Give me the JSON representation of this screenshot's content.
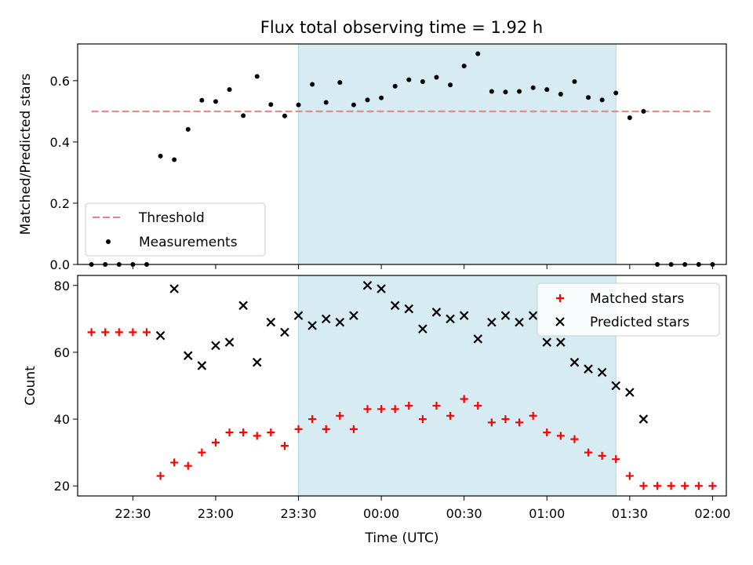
{
  "figure": {
    "title": "Flux total observing time = 1.92 h"
  },
  "chart_data": [
    {
      "type": "scatter",
      "panel": "top",
      "ylabel": "Matched/Predicted stars",
      "ylim": [
        0,
        0.72
      ],
      "yticks": [
        0.0,
        0.2,
        0.4,
        0.6
      ],
      "ytick_labels": [
        "0.0",
        "0.2",
        "0.4",
        "0.6"
      ],
      "x_range": [
        "22:10",
        "02:05"
      ],
      "shaded_span": [
        "23:30",
        "01:25"
      ],
      "shade_color": "#add8e6",
      "legend": "lower-left",
      "series": [
        {
          "name": "Threshold",
          "kind": "dashed-line",
          "color": "#f08080",
          "x": [
            "22:15",
            "02:00"
          ],
          "y": [
            0.5,
            0.5
          ]
        },
        {
          "name": "Measurements",
          "kind": "dot",
          "color": "#000000",
          "x": [
            "22:15",
            "22:20",
            "22:25",
            "22:30",
            "22:35",
            "22:40",
            "22:45",
            "22:50",
            "22:55",
            "23:00",
            "23:05",
            "23:10",
            "23:15",
            "23:20",
            "23:25",
            "23:30",
            "23:35",
            "23:40",
            "23:45",
            "23:50",
            "23:55",
            "00:00",
            "00:05",
            "00:10",
            "00:15",
            "00:20",
            "00:25",
            "00:30",
            "00:35",
            "00:40",
            "00:45",
            "00:50",
            "00:55",
            "01:00",
            "01:05",
            "01:10",
            "01:15",
            "01:20",
            "01:25",
            "01:30",
            "01:35",
            "01:40",
            "01:45",
            "01:50",
            "01:55",
            "02:00"
          ],
          "y": [
            0.0,
            0.0,
            0.0,
            0.0,
            0.0,
            0.354,
            0.342,
            0.441,
            0.536,
            0.532,
            0.571,
            0.486,
            0.614,
            0.522,
            0.485,
            0.521,
            0.588,
            0.529,
            0.594,
            0.521,
            0.537,
            0.544,
            0.582,
            0.603,
            0.597,
            0.611,
            0.586,
            0.648,
            0.688,
            0.565,
            0.563,
            0.565,
            0.577,
            0.571,
            0.556,
            0.597,
            0.545,
            0.537,
            0.56,
            0.479,
            0.5,
            0.0,
            0.0,
            0.0,
            0.0,
            0.0
          ]
        }
      ]
    },
    {
      "type": "scatter",
      "panel": "bottom",
      "xlabel": "Time (UTC)",
      "ylabel": "Count",
      "ylim": [
        17,
        83
      ],
      "yticks": [
        20,
        40,
        60,
        80
      ],
      "xticks": [
        "22:30",
        "23:00",
        "23:30",
        "00:00",
        "00:30",
        "01:00",
        "01:30",
        "02:00"
      ],
      "shaded_span": [
        "23:30",
        "01:25"
      ],
      "legend": "top-right",
      "series": [
        {
          "name": "Matched stars",
          "marker": "+",
          "color": "#ff0000",
          "x": [
            "22:15",
            "22:20",
            "22:25",
            "22:30",
            "22:35",
            "22:40",
            "22:45",
            "22:50",
            "22:55",
            "23:00",
            "23:05",
            "23:10",
            "23:15",
            "23:20",
            "23:25",
            "23:30",
            "23:35",
            "23:40",
            "23:45",
            "23:50",
            "23:55",
            "00:00",
            "00:05",
            "00:10",
            "00:15",
            "00:20",
            "00:25",
            "00:30",
            "00:35",
            "00:40",
            "00:45",
            "00:50",
            "00:55",
            "01:00",
            "01:05",
            "01:10",
            "01:15",
            "01:20",
            "01:25",
            "01:30",
            "01:35",
            "01:40",
            "01:45",
            "01:50",
            "01:55",
            "02:00"
          ],
          "y": [
            66,
            66,
            66,
            66,
            66,
            23,
            27,
            26,
            30,
            33,
            36,
            36,
            35,
            36,
            32,
            37,
            40,
            37,
            41,
            37,
            43,
            43,
            43,
            44,
            40,
            44,
            41,
            46,
            44,
            39,
            40,
            39,
            41,
            36,
            35,
            34,
            30,
            29,
            28,
            23,
            20,
            20,
            20,
            20,
            20,
            20
          ]
        },
        {
          "name": "Predicted stars",
          "marker": "x",
          "color": "#000000",
          "x": [
            "22:40",
            "22:45",
            "22:50",
            "22:55",
            "23:00",
            "23:05",
            "23:10",
            "23:15",
            "23:20",
            "23:25",
            "23:30",
            "23:35",
            "23:40",
            "23:45",
            "23:50",
            "23:55",
            "00:00",
            "00:05",
            "00:10",
            "00:15",
            "00:20",
            "00:25",
            "00:30",
            "00:35",
            "00:40",
            "00:45",
            "00:50",
            "00:55",
            "01:00",
            "01:05",
            "01:10",
            "01:15",
            "01:20",
            "01:25",
            "01:30",
            "01:35"
          ],
          "y": [
            65,
            79,
            59,
            56,
            62,
            63,
            74,
            57,
            69,
            66,
            71,
            68,
            70,
            69,
            71,
            80,
            79,
            74,
            73,
            67,
            72,
            70,
            71,
            64,
            69,
            71,
            69,
            71,
            63,
            63,
            57,
            55,
            54,
            50,
            48,
            40
          ]
        }
      ]
    }
  ]
}
